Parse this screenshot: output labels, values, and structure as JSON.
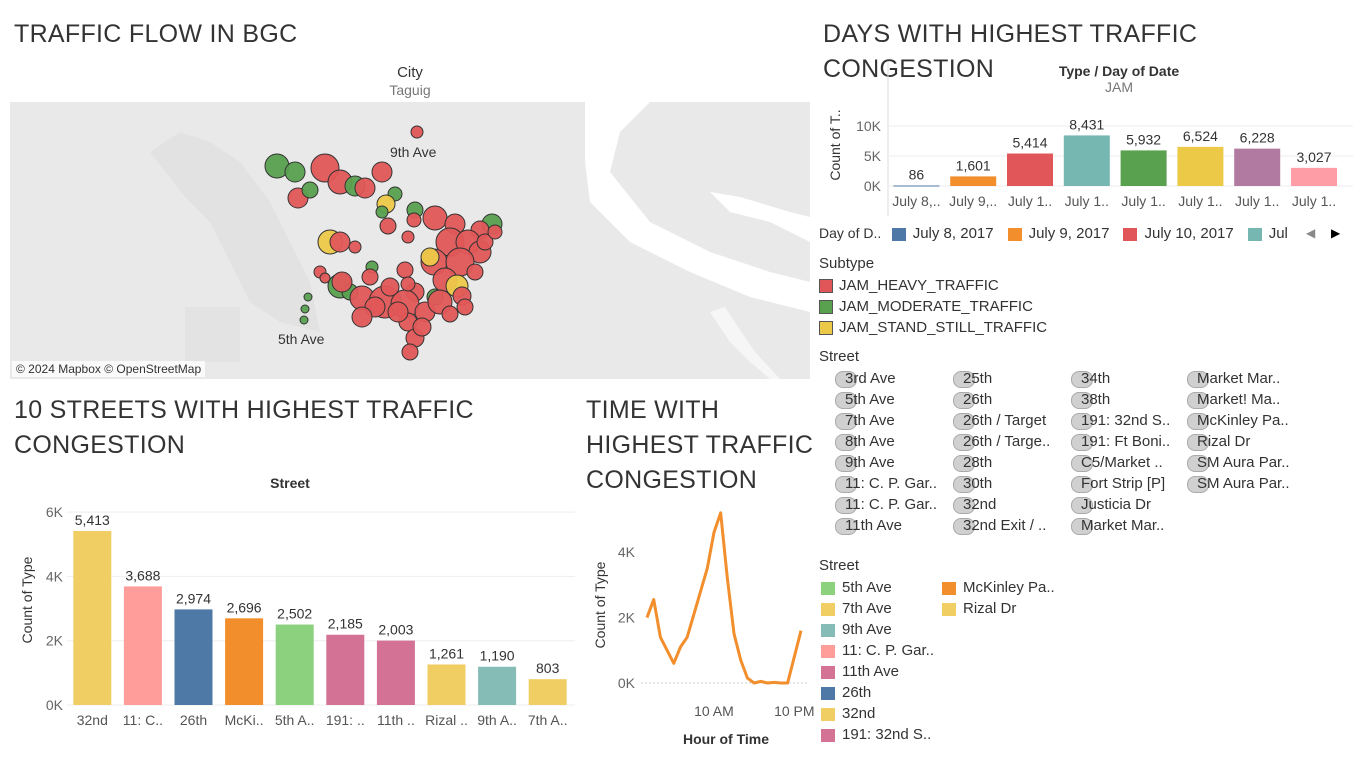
{
  "map_section": {
    "title": "TRAFFIC FLOW IN BGC",
    "header": "City",
    "subheader": "Taguig",
    "labels": [
      "9th Ave",
      "5th Ave"
    ],
    "attribution": "© 2024 Mapbox © OpenStreetMap"
  },
  "days_section": {
    "title": "DAYS WITH HIGHEST TRAFFIC CONGESTION",
    "header": "Type  /  Day of Date",
    "subheader": "JAM",
    "legend_title": "Day of D..",
    "legend_items": [
      {
        "label": "July 8, 2017",
        "color": "#4e79a7"
      },
      {
        "label": "July 9, 2017",
        "color": "#f28e2b"
      },
      {
        "label": "July 10, 2017",
        "color": "#e15759"
      },
      {
        "label": "Jul",
        "color": "#76b7b2"
      }
    ]
  },
  "subtype_legend": {
    "title": "Subtype",
    "items": [
      {
        "label": "JAM_HEAVY_TRAFFIC",
        "color": "#e15759"
      },
      {
        "label": "JAM_MODERATE_TRAFFIC",
        "color": "#59a14f"
      },
      {
        "label": "JAM_STAND_STILL_TRAFFIC",
        "color": "#edc948"
      }
    ]
  },
  "street_filter": {
    "title": "Street",
    "columns": [
      [
        "3rd Ave",
        "5th Ave",
        "7th Ave",
        "8th Ave",
        "9th Ave",
        "11: C. P. Gar..",
        "11: C. P. Gar..",
        "11th Ave"
      ],
      [
        "25th",
        "26th",
        "26th / Target",
        "26th / Targe..",
        "28th",
        "30th",
        "32nd",
        "32nd Exit / .."
      ],
      [
        "34th",
        "38th",
        "191: 32nd S..",
        "191: Ft Boni..",
        "C5/Market ..",
        "Fort Strip [P]",
        "Justicia Dr",
        "Market Mar.."
      ],
      [
        "Market Mar..",
        "Market! Ma..",
        "McKinley Pa..",
        "Rizal Dr",
        "SM Aura Par..",
        "SM Aura Par.."
      ]
    ]
  },
  "street_color_legend": {
    "title": "Street",
    "col1": [
      {
        "label": "5th Ave",
        "color": "#8cd17d"
      },
      {
        "label": "7th Ave",
        "color": "#f1ce63"
      },
      {
        "label": "9th Ave",
        "color": "#86bcb6"
      },
      {
        "label": "11: C. P. Gar..",
        "color": "#ff9d9a"
      },
      {
        "label": "11th Ave",
        "color": "#d37295"
      },
      {
        "label": "26th",
        "color": "#4e79a7"
      },
      {
        "label": "32nd",
        "color": "#f1ce63"
      },
      {
        "label": "191: 32nd S..",
        "color": "#d37295"
      }
    ],
    "col2": [
      {
        "label": "McKinley Pa..",
        "color": "#f28e2b"
      },
      {
        "label": "Rizal Dr",
        "color": "#f1ce63"
      }
    ]
  },
  "streets_section": {
    "title_line1": "10 STREETS WITH HIGHEST TRAFFIC",
    "title_line2": "CONGESTION",
    "header": "Street"
  },
  "time_section": {
    "title_line1": "TIME WITH",
    "title_line2": "HIGHEST TRAFFIC",
    "title_line3": "CONGESTION"
  },
  "chart_data": [
    {
      "type": "bar",
      "title": "DAYS WITH HIGHEST TRAFFIC CONGESTION",
      "ylabel": "Count of T..",
      "ylim": [
        0,
        12000
      ],
      "yticks": [
        "10K",
        "5K",
        "0K"
      ],
      "ytick_values": [
        10000,
        5000,
        0
      ],
      "categories": [
        "July 8,..",
        "July 9,..",
        "July 1..",
        "July 1..",
        "July 1..",
        "July 1..",
        "July 1..",
        "July 1.."
      ],
      "values": [
        86,
        1601,
        5414,
        8431,
        5932,
        6524,
        6228,
        3027
      ],
      "value_labels": [
        "86",
        "1,601",
        "5,414",
        "8,431",
        "5,932",
        "6,524",
        "6,228",
        "3,027"
      ],
      "colors": [
        "#4e79a7",
        "#f28e2b",
        "#e15759",
        "#76b7b2",
        "#59a14f",
        "#edc948",
        "#b07aa1",
        "#ff9da7"
      ]
    },
    {
      "type": "bar",
      "title": "10 STREETS WITH HIGHEST TRAFFIC CONGESTION",
      "ylabel": "Count of Type",
      "ylim": [
        0,
        6500
      ],
      "yticks": [
        "6K",
        "4K",
        "2K",
        "0K"
      ],
      "ytick_values": [
        6000,
        4000,
        2000,
        0
      ],
      "categories": [
        "32nd",
        "11: C..",
        "26th",
        "McKi..",
        "5th A..",
        "191: ..",
        "11th ..",
        "Rizal ..",
        "9th A..",
        "7th A.."
      ],
      "values": [
        5413,
        3688,
        2974,
        2696,
        2502,
        2185,
        2003,
        1261,
        1190,
        803
      ],
      "value_labels": [
        "5,413",
        "3,688",
        "2,974",
        "2,696",
        "2,502",
        "2,185",
        "2,003",
        "1,261",
        "1,190",
        "803"
      ],
      "colors": [
        "#f1ce63",
        "#ff9d9a",
        "#4e79a7",
        "#f28e2b",
        "#8cd17d",
        "#d37295",
        "#d37295",
        "#f1ce63",
        "#86bcb6",
        "#f1ce63"
      ]
    },
    {
      "type": "line",
      "title": "TIME WITH HIGHEST TRAFFIC CONGESTION",
      "xlabel": "Hour of Time",
      "ylabel": "Count of Type",
      "ylim": [
        0,
        5500
      ],
      "yticks": [
        "4K",
        "2K",
        "0K"
      ],
      "ytick_values": [
        4000,
        2000,
        0
      ],
      "xtick_labels": [
        "10 AM",
        "10 PM"
      ],
      "xtick_hours": [
        10,
        22
      ],
      "x": [
        0,
        1,
        2,
        3,
        4,
        5,
        6,
        7,
        8,
        9,
        10,
        11,
        12,
        13,
        14,
        15,
        16,
        17,
        18,
        19,
        20,
        21,
        22,
        23
      ],
      "values": [
        2000,
        2550,
        1400,
        1000,
        600,
        1100,
        1400,
        2100,
        2800,
        3500,
        4600,
        5200,
        3200,
        1500,
        700,
        150,
        0,
        50,
        0,
        20,
        0,
        0,
        800,
        1600
      ],
      "color": "#f28e2b"
    }
  ]
}
